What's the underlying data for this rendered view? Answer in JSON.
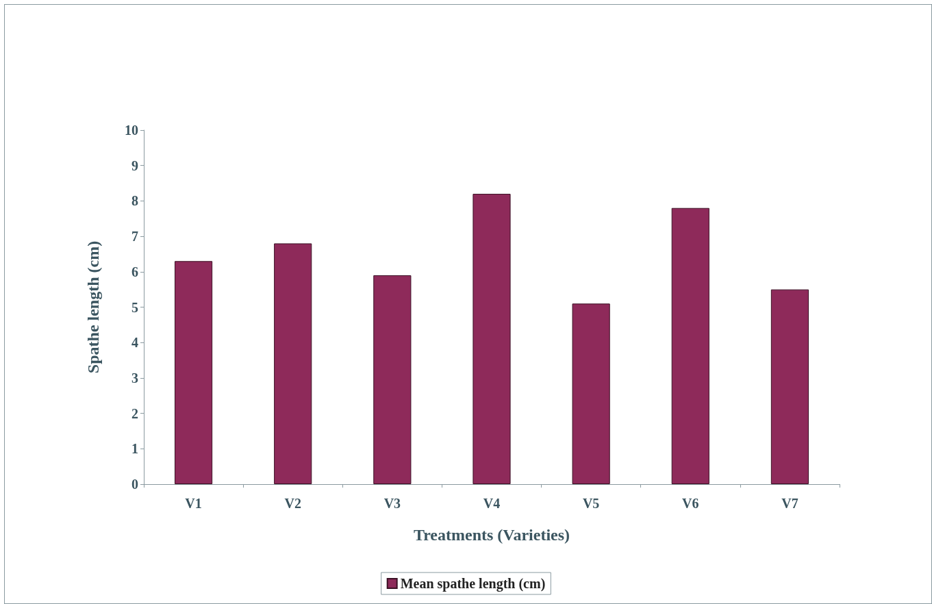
{
  "chart_data": {
    "type": "bar",
    "xlabel": "Treatments (Varieties)",
    "ylabel": "Spathe length (cm)",
    "categories": [
      "V1",
      "V2",
      "V3",
      "V4",
      "V5",
      "V6",
      "V7"
    ],
    "series": [
      {
        "name": "Mean spathe length (cm)",
        "color": "#8e2a5a",
        "values": [
          6.3,
          6.8,
          5.9,
          8.2,
          5.1,
          7.8,
          5.5
        ]
      }
    ],
    "ylim": [
      0,
      10
    ],
    "yticks": [
      0,
      1,
      2,
      3,
      4,
      5,
      6,
      7,
      8,
      9,
      10
    ],
    "grid": false,
    "legend": "bottom"
  }
}
